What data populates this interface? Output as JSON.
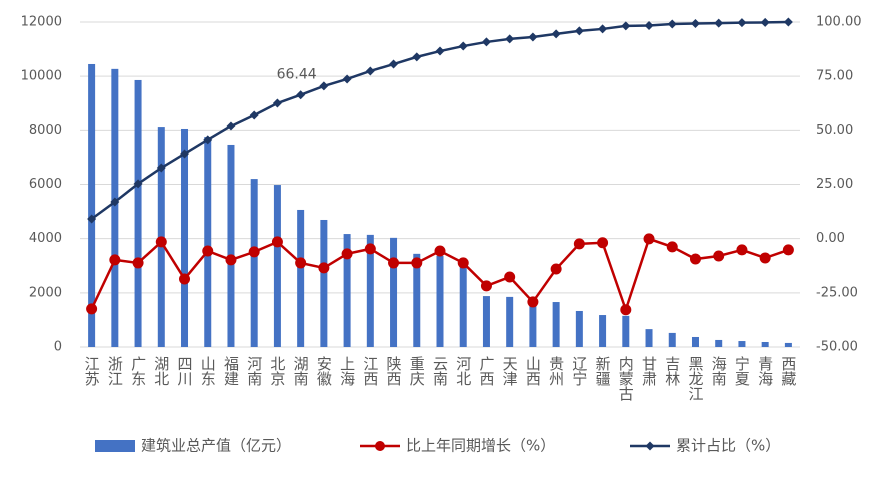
{
  "chart_data": {
    "type": "combo",
    "categories": [
      "江苏",
      "浙江",
      "广东",
      "湖北",
      "四川",
      "山东",
      "福建",
      "河南",
      "北京",
      "湖南",
      "安徽",
      "上海",
      "江西",
      "陕西",
      "重庆",
      "云南",
      "河北",
      "广西",
      "天津",
      "山西",
      "贵州",
      "辽宁",
      "新疆",
      "内蒙古",
      "甘肃",
      "吉林",
      "黑龙江",
      "海南",
      "宁夏",
      "青海",
      "西藏"
    ],
    "series": [
      {
        "name": "建筑业总产值（亿元）",
        "kind": "bar",
        "color": "#4472c4",
        "values": [
          10450,
          10270,
          9860,
          8120,
          8050,
          7750,
          7460,
          6200,
          5980,
          5060,
          4690,
          4170,
          4140,
          4030,
          3440,
          3360,
          3100,
          1880,
          1850,
          1660,
          1660,
          1330,
          1180,
          1150,
          660,
          520,
          370,
          260,
          220,
          185,
          150
        ]
      },
      {
        "name": "比上年同期增长（%）",
        "kind": "line",
        "marker": "circle",
        "axis": "y2",
        "color": "#c00000",
        "values": [
          -32.4,
          -9.8,
          -11.2,
          -1.5,
          -18.6,
          -5.7,
          -9.8,
          -6.1,
          -1.5,
          -11.2,
          -13.5,
          -7.0,
          -4.7,
          -11.2,
          -11.2,
          -5.7,
          -11.2,
          -21.8,
          -17.7,
          -29.2,
          -14.0,
          -2.4,
          -1.9,
          -32.8,
          -0.1,
          -3.8,
          -9.4,
          -8.0,
          -5.2,
          -8.9,
          -5.2
        ]
      },
      {
        "name": "累计占比（%）",
        "kind": "line",
        "marker": "diamond",
        "axis": "y2",
        "color": "#1f3864",
        "values": [
          9.1,
          16.9,
          25.3,
          32.6,
          39.1,
          45.6,
          52.0,
          57.1,
          62.6,
          66.44,
          70.5,
          73.7,
          77.4,
          80.6,
          83.9,
          86.6,
          88.9,
          90.8,
          92.2,
          93.1,
          94.5,
          95.9,
          96.8,
          98.2,
          98.4,
          99.1,
          99.3,
          99.5,
          99.7,
          99.8,
          100
        ],
        "value_labels": [
          null,
          null,
          null,
          null,
          null,
          null,
          null,
          null,
          null,
          "66.44",
          null,
          null,
          null,
          null,
          null,
          null,
          null,
          null,
          null,
          null,
          null,
          null,
          null,
          null,
          null,
          null,
          null,
          null,
          null,
          null,
          null
        ]
      }
    ],
    "ylim": [
      0,
      12000
    ],
    "yticks": [
      0,
      2000,
      4000,
      6000,
      8000,
      10000,
      12000
    ],
    "y2lim": [
      -50,
      100
    ],
    "y2ticks": [
      {
        "value": -50,
        "label": "-50.00"
      },
      {
        "value": -25,
        "label": "-25.00"
      },
      {
        "value": 0,
        "label": "0.00"
      },
      {
        "value": 25,
        "label": "25.00"
      },
      {
        "value": 50,
        "label": "50.00"
      },
      {
        "value": 75,
        "label": "75.00"
      },
      {
        "value": 100,
        "label": "100.00"
      }
    ],
    "grid": true,
    "legend": "bottom"
  }
}
